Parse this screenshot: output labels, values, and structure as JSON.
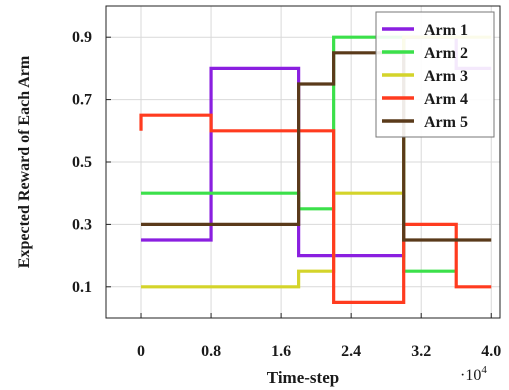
{
  "chart_data": {
    "type": "line",
    "title": "",
    "xlabel": "Time-step",
    "ylabel": "Expected Reward of Each Arm",
    "x_multiplier_label": "·10",
    "x_multiplier_exponent": "4",
    "xlim": [
      -0.4,
      4.1
    ],
    "ylim": [
      0.0,
      1.0
    ],
    "x_ticks": [
      0,
      0.8,
      1.6,
      2.4,
      3.2,
      4.0
    ],
    "x_tick_labels": [
      "0",
      "0.8",
      "1.6",
      "2.4",
      "3.2",
      "4.0"
    ],
    "y_ticks": [
      0.1,
      0.3,
      0.5,
      0.7,
      0.9
    ],
    "y_tick_labels": [
      "0.1",
      "0.3",
      "0.5",
      "0.7",
      "0.9"
    ],
    "grid": true,
    "legend_position": "top-right",
    "series": [
      {
        "name": "Arm 1",
        "color": "#8a1fe0",
        "steps": [
          {
            "x0": 0,
            "x1": 0.8,
            "y": 0.25
          },
          {
            "x0": 0.8,
            "x1": 1.8,
            "y": 0.8
          },
          {
            "x0": 1.8,
            "x1": 3.0,
            "y": 0.2
          },
          {
            "x0": 3.0,
            "x1": 3.6,
            "y": 0.9
          },
          {
            "x0": 3.6,
            "x1": 4.0,
            "y": 0.8
          }
        ]
      },
      {
        "name": "Arm 2",
        "color": "#3be04a",
        "steps": [
          {
            "x0": 0,
            "x1": 1.8,
            "y": 0.4
          },
          {
            "x0": 1.8,
            "x1": 2.2,
            "y": 0.35
          },
          {
            "x0": 2.2,
            "x1": 3.0,
            "y": 0.9
          },
          {
            "x0": 3.0,
            "x1": 3.6,
            "y": 0.15
          }
        ]
      },
      {
        "name": "Arm 3",
        "color": "#d4d42a",
        "steps": [
          {
            "x0": 0,
            "x1": 1.8,
            "y": 0.1
          },
          {
            "x0": 1.8,
            "x1": 2.2,
            "y": 0.15
          },
          {
            "x0": 2.2,
            "x1": 3.0,
            "y": 0.4
          },
          {
            "x0": 3.0,
            "x1": 4.0,
            "y": 0.9
          }
        ]
      },
      {
        "name": "Arm 4",
        "color": "#ff3b1f",
        "steps": [
          {
            "x0": 0,
            "x1": 0.8,
            "y": 0.65
          },
          {
            "x0": 0.8,
            "x1": 2.2,
            "y": 0.6
          },
          {
            "x0": 2.2,
            "x1": 3.0,
            "y": 0.05
          },
          {
            "x0": 3.0,
            "x1": 3.6,
            "y": 0.3
          },
          {
            "x0": 3.6,
            "x1": 4.0,
            "y": 0.1
          }
        ],
        "start_tail": 0.6
      },
      {
        "name": "Arm 5",
        "color": "#5a3a1a",
        "steps": [
          {
            "x0": 0,
            "x1": 1.8,
            "y": 0.3
          },
          {
            "x0": 1.8,
            "x1": 2.2,
            "y": 0.75
          },
          {
            "x0": 2.2,
            "x1": 3.0,
            "y": 0.85
          },
          {
            "x0": 3.0,
            "x1": 4.0,
            "y": 0.25
          }
        ]
      }
    ]
  }
}
